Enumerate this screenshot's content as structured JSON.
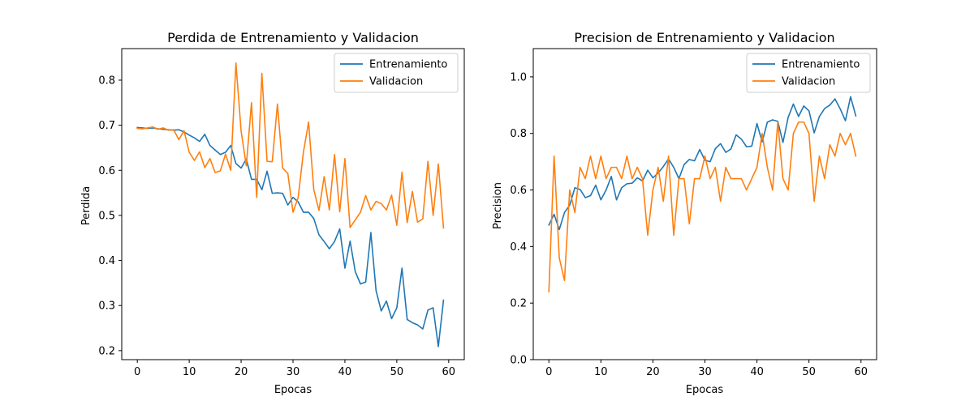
{
  "chart_data": [
    {
      "type": "line",
      "title": "Perdida de Entrenamiento y Validacion",
      "xlabel": "Epocas",
      "ylabel": "Perdida",
      "xlim": [
        -3,
        63
      ],
      "ylim": [
        0.18,
        0.87
      ],
      "xticks": [
        0,
        10,
        20,
        30,
        40,
        50,
        60
      ],
      "yticks": [
        0.2,
        0.3,
        0.4,
        0.5,
        0.6,
        0.7,
        0.8
      ],
      "ytick_labels": [
        "0.2",
        "0.3",
        "0.4",
        "0.5",
        "0.6",
        "0.7",
        "0.8"
      ],
      "grid": false,
      "legend": "top-right",
      "series": [
        {
          "name": "Entrenamiento",
          "color": "#1f77b4",
          "values": [
            0.695,
            0.694,
            0.693,
            0.694,
            0.692,
            0.691,
            0.69,
            0.689,
            0.69,
            0.685,
            0.678,
            0.672,
            0.664,
            0.68,
            0.655,
            0.645,
            0.635,
            0.64,
            0.655,
            0.615,
            0.605,
            0.625,
            0.58,
            0.58,
            0.557,
            0.598,
            0.549,
            0.55,
            0.549,
            0.523,
            0.54,
            0.53,
            0.507,
            0.507,
            0.493,
            0.457,
            0.442,
            0.426,
            0.442,
            0.47,
            0.383,
            0.443,
            0.375,
            0.348,
            0.352,
            0.462,
            0.333,
            0.288,
            0.31,
            0.271,
            0.295,
            0.383,
            0.269,
            0.262,
            0.257,
            0.248,
            0.29,
            0.295,
            0.209,
            0.312
          ]
        },
        {
          "name": "Validacion",
          "color": "#ff7f0e",
          "values": [
            0.693,
            0.692,
            0.694,
            0.696,
            0.691,
            0.694,
            0.689,
            0.69,
            0.668,
            0.688,
            0.64,
            0.622,
            0.641,
            0.606,
            0.626,
            0.595,
            0.599,
            0.636,
            0.6,
            0.838,
            0.687,
            0.61,
            0.75,
            0.54,
            0.815,
            0.62,
            0.619,
            0.747,
            0.605,
            0.593,
            0.507,
            0.54,
            0.64,
            0.707,
            0.557,
            0.511,
            0.586,
            0.512,
            0.635,
            0.508,
            0.626,
            0.473,
            0.49,
            0.507,
            0.544,
            0.512,
            0.531,
            0.526,
            0.512,
            0.545,
            0.478,
            0.596,
            0.484,
            0.553,
            0.485,
            0.492,
            0.62,
            0.5,
            0.614,
            0.472
          ]
        }
      ]
    },
    {
      "type": "line",
      "title": "Precision de Entrenamiento y Validacion",
      "xlabel": "Epocas",
      "ylabel": "Precision",
      "xlim": [
        -3,
        63
      ],
      "ylim": [
        0.0,
        1.1
      ],
      "xticks": [
        0,
        10,
        20,
        30,
        40,
        50,
        60
      ],
      "yticks": [
        0.0,
        0.2,
        0.4,
        0.6,
        0.8,
        1.0
      ],
      "ytick_labels": [
        "0.0",
        "0.2",
        "0.4",
        "0.6",
        "0.8",
        "1.0"
      ],
      "grid": false,
      "legend": "top-right",
      "series": [
        {
          "name": "Entrenamiento",
          "color": "#1f77b4",
          "values": [
            0.476,
            0.514,
            0.46,
            0.52,
            0.546,
            0.608,
            0.602,
            0.573,
            0.58,
            0.617,
            0.565,
            0.6,
            0.648,
            0.565,
            0.608,
            0.622,
            0.624,
            0.643,
            0.632,
            0.67,
            0.643,
            0.66,
            0.683,
            0.71,
            0.68,
            0.64,
            0.69,
            0.708,
            0.703,
            0.743,
            0.705,
            0.7,
            0.746,
            0.764,
            0.733,
            0.745,
            0.795,
            0.78,
            0.753,
            0.755,
            0.835,
            0.77,
            0.84,
            0.848,
            0.843,
            0.768,
            0.857,
            0.904,
            0.86,
            0.897,
            0.88,
            0.802,
            0.86,
            0.888,
            0.9,
            0.922,
            0.887,
            0.845,
            0.93,
            0.862
          ]
        },
        {
          "name": "Validacion",
          "color": "#ff7f0e",
          "values": [
            0.24,
            0.72,
            0.36,
            0.28,
            0.6,
            0.52,
            0.68,
            0.64,
            0.72,
            0.64,
            0.72,
            0.64,
            0.68,
            0.68,
            0.64,
            0.72,
            0.64,
            0.68,
            0.64,
            0.44,
            0.6,
            0.68,
            0.56,
            0.72,
            0.44,
            0.64,
            0.64,
            0.48,
            0.64,
            0.64,
            0.72,
            0.64,
            0.68,
            0.56,
            0.68,
            0.64,
            0.64,
            0.64,
            0.6,
            0.64,
            0.68,
            0.8,
            0.68,
            0.6,
            0.84,
            0.64,
            0.6,
            0.8,
            0.84,
            0.84,
            0.8,
            0.56,
            0.72,
            0.64,
            0.76,
            0.72,
            0.8,
            0.76,
            0.8,
            0.72
          ]
        }
      ]
    }
  ]
}
